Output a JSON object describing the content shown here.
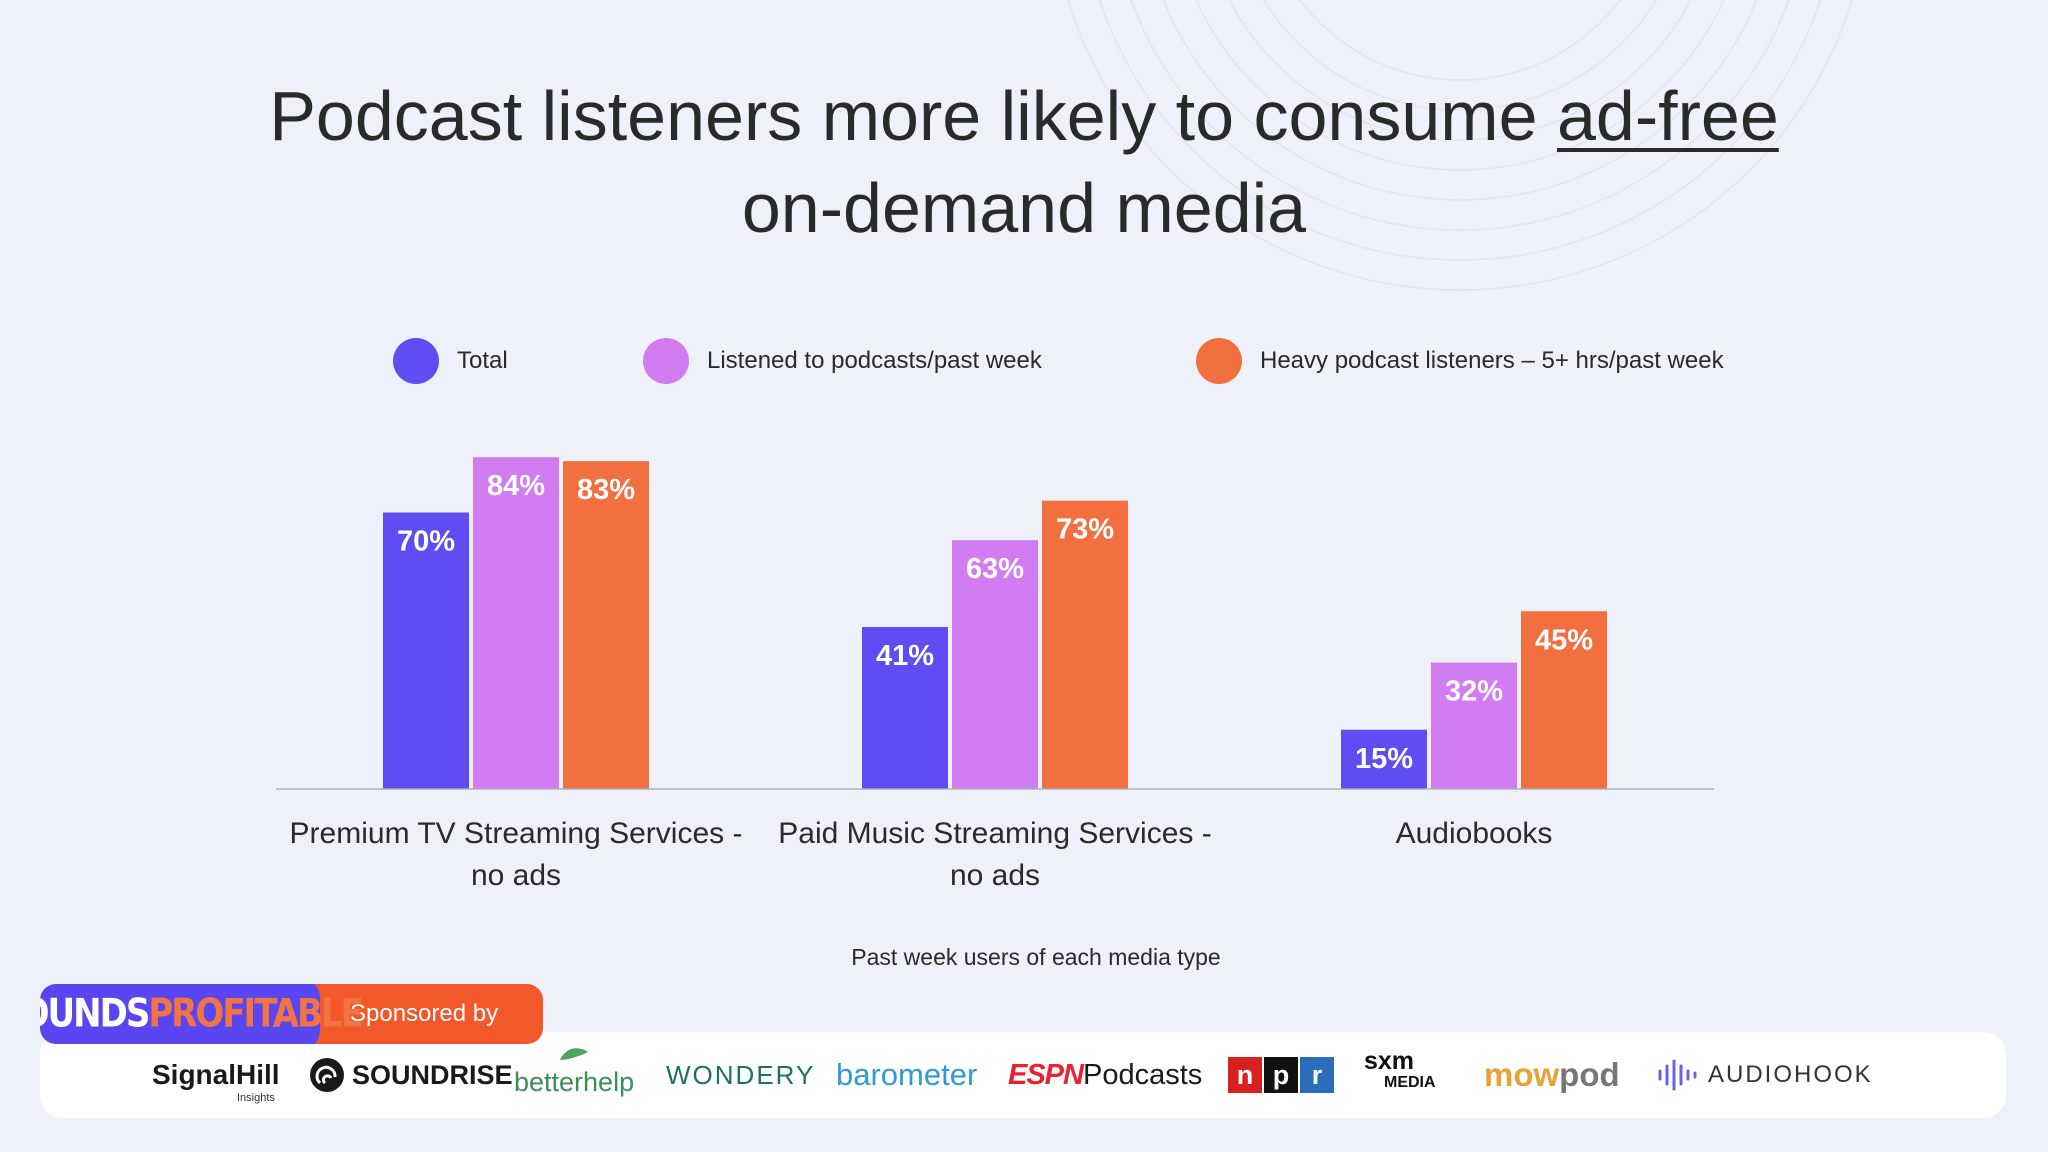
{
  "title_part1": "Podcast listeners more likely to consume ",
  "title_highlight": "ad-free",
  "title_part2": "on-demand media",
  "legend": [
    {
      "label": "Total",
      "color": "#5f4cf2"
    },
    {
      "label": "Listened to podcasts/past week",
      "color": "#d17cf0"
    },
    {
      "label": "Heavy podcast listeners – 5+ hrs/past week",
      "color": "#f2703f"
    }
  ],
  "chart_data": {
    "type": "bar",
    "categories": [
      [
        "Premium TV Streaming Services -",
        "no ads"
      ],
      [
        "Paid Music Streaming Services -",
        "no ads"
      ],
      [
        "Audiobooks"
      ]
    ],
    "series": [
      {
        "name": "Total",
        "values": [
          70,
          41,
          15
        ],
        "color": "#5f4cf2"
      },
      {
        "name": "Listened to podcasts/past week",
        "values": [
          84,
          63,
          32
        ],
        "color": "#d17cf0"
      },
      {
        "name": "Heavy podcast listeners – 5+ hrs/past week",
        "values": [
          83,
          73,
          45
        ],
        "color": "#f2703f"
      }
    ],
    "value_suffix": "%",
    "xlabel": "Past week users of each media type",
    "ylim": [
      0,
      100
    ],
    "grid": false,
    "legend_position": "top"
  },
  "footer": {
    "brand_word1": "SOUNDS",
    "brand_word2": "PROFITABLE",
    "sponsored_label": "Sponsored by",
    "sponsors": {
      "signal": "SignalHill",
      "signal_sub": "Insights",
      "soundrise": "SOUNDRISE",
      "betterhelp": "betterhelp",
      "wondery": "WONDERY",
      "barometer": "barometer",
      "espn": "ESPN",
      "podcasts": "Podcasts",
      "npr": [
        "n",
        "p",
        "r"
      ],
      "sxm": "sxm",
      "sxm_sub": "MEDIA",
      "mowpod1": "mow",
      "mowpod2": "pod",
      "audiohook": "AUDIOHOOK"
    }
  }
}
